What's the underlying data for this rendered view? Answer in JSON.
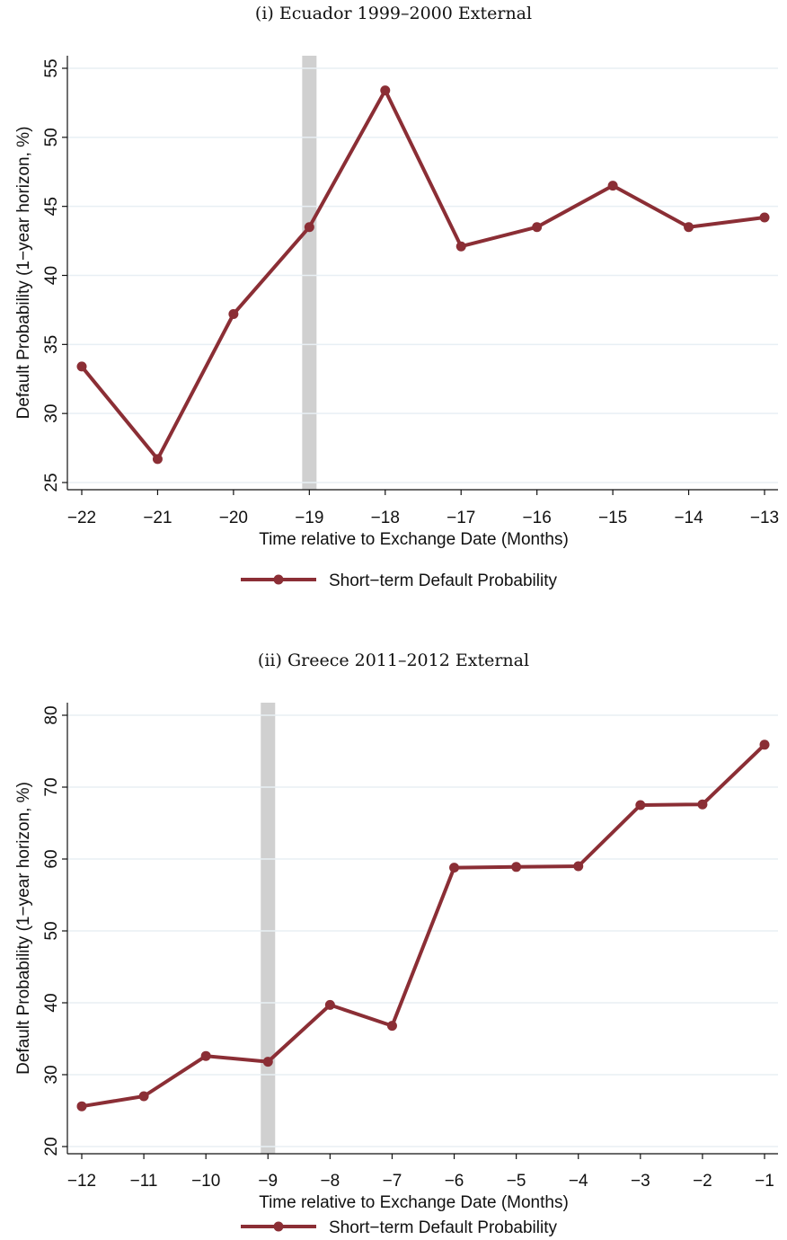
{
  "chart_data": [
    {
      "type": "line",
      "title": "(i) Ecuador 1999–2000 External",
      "xlabel": "Time relative to Exchange Date (Months)",
      "ylabel": "Default Probability (1−year horizon, %)",
      "x_ticks": [
        "−22",
        "−21",
        "−20",
        "−19",
        "−18",
        "−17",
        "−16",
        "−15",
        "−14",
        "−13"
      ],
      "y_ticks": [
        "25",
        "30",
        "35",
        "40",
        "45",
        "50",
        "55"
      ],
      "xlim": [
        -22,
        -13
      ],
      "ylim": [
        24,
        56
      ],
      "highlight_x": -19,
      "series": [
        {
          "name": "Short−term Default Probability",
          "x": [
            -22,
            -21,
            -20,
            -19,
            -18,
            -17,
            -16,
            -15,
            -14,
            -13
          ],
          "values": [
            33.4,
            26.7,
            37.2,
            43.5,
            53.4,
            42.1,
            43.5,
            46.5,
            43.5,
            44.2
          ]
        }
      ],
      "legend": "bottom-center",
      "grid": true,
      "colors": {
        "line": "#8b2e35",
        "highlight": "#d0d0d0",
        "grid": "#e8eff4"
      }
    },
    {
      "type": "line",
      "title": "(ii) Greece 2011–2012 External",
      "xlabel": "Time relative to Exchange Date (Months)",
      "ylabel": "Default Probability (1−year horizon, %)",
      "x_ticks": [
        "−12",
        "−11",
        "−10",
        "−9",
        "−8",
        "−7",
        "−6",
        "−5",
        "−4",
        "−3",
        "−2",
        "−1"
      ],
      "y_ticks": [
        "20",
        "30",
        "40",
        "50",
        "60",
        "70",
        "80"
      ],
      "xlim": [
        -12,
        -1
      ],
      "ylim": [
        18,
        82
      ],
      "highlight_x": -9,
      "series": [
        {
          "name": "Short−term Default Probability",
          "x": [
            -12,
            -11,
            -10,
            -9,
            -8,
            -7,
            -6,
            -5,
            -4,
            -3,
            -2,
            -1
          ],
          "values": [
            25.6,
            27.0,
            32.6,
            31.8,
            39.7,
            36.8,
            58.8,
            58.9,
            59.0,
            67.5,
            67.6,
            75.9
          ]
        }
      ],
      "legend": "bottom-center",
      "grid": true,
      "colors": {
        "line": "#8b2e35",
        "highlight": "#d0d0d0",
        "grid": "#e8eff4"
      }
    }
  ]
}
